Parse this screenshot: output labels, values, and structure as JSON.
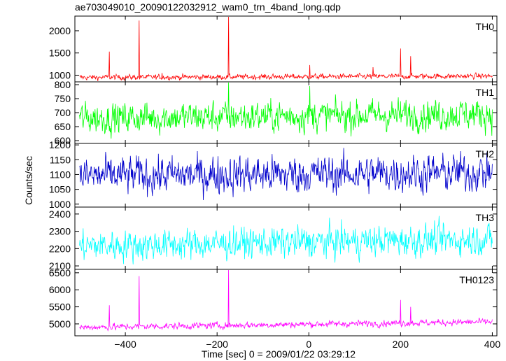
{
  "title": "ae703049010_20090122032912_wam0_trn_4band_long.qdp",
  "xlabel": "Time [sec] 0 = 2009/01/22 03:29:12",
  "ylabel": "Counts/sec",
  "chart_data": {
    "type": "line",
    "x_range": [
      -510,
      410
    ],
    "x_ticks": [
      -400,
      -200,
      0,
      200,
      400
    ],
    "x_tick_labels": [
      "−400",
      "−200",
      "0",
      "200",
      "400"
    ],
    "panels": [
      {
        "name": "TH0",
        "color": "#ff0000",
        "ylim": [
          850,
          2330
        ],
        "y_ticks": [
          1000,
          1500,
          2000
        ],
        "y_tick_labels": [
          "1000",
          "1500",
          "2000"
        ],
        "x_start": -500,
        "x_end": 400,
        "baseline": 950,
        "trend": 30,
        "noise": 28,
        "spikes": [
          [
            -435,
            1530
          ],
          [
            -370,
            2230
          ],
          [
            -175,
            2330
          ],
          [
            2,
            1230
          ],
          [
            200,
            1600
          ],
          [
            222,
            1430
          ],
          [
            140,
            1180
          ],
          [
            -320,
            1050
          ]
        ]
      },
      {
        "name": "TH1",
        "color": "#00ff00",
        "ylim": [
          590,
          810
        ],
        "y_ticks": [
          600,
          650,
          700,
          750,
          800
        ],
        "y_tick_labels": [
          "600",
          "650",
          "700",
          "750",
          "800"
        ],
        "x_start": -500,
        "x_end": 400,
        "baseline": 680,
        "trend": 15,
        "noise": 26,
        "spikes": [
          [
            -175,
            815
          ],
          [
            2,
            795
          ]
        ]
      },
      {
        "name": "TH2",
        "color": "#0000cc",
        "ylim": [
          990,
          1205
        ],
        "y_ticks": [
          1000,
          1050,
          1100,
          1150,
          1200
        ],
        "y_tick_labels": [
          "1000",
          "1050",
          "1100",
          "1150",
          "1200"
        ],
        "x_start": -500,
        "x_end": 400,
        "baseline": 1095,
        "trend": 12,
        "noise": 30,
        "spikes": []
      },
      {
        "name": "TH3",
        "color": "#00ffff",
        "ylim": [
          2080,
          2440
        ],
        "y_ticks": [
          2100,
          2200,
          2300,
          2400
        ],
        "y_tick_labels": [
          "2100",
          "2200",
          "2300",
          "2400"
        ],
        "x_start": -500,
        "x_end": 400,
        "baseline": 2215,
        "trend": 40,
        "noise": 42,
        "spikes": []
      },
      {
        "name": "TH0123",
        "color": "#ff00ff",
        "ylim": [
          4650,
          6600
        ],
        "y_ticks": [
          5000,
          5500,
          6000,
          6500
        ],
        "y_tick_labels": [
          "5000",
          "5500",
          "6000",
          "6500"
        ],
        "x_start": -500,
        "x_end": 400,
        "baseline": 4900,
        "trend": 160,
        "noise": 45,
        "spikes": [
          [
            -435,
            5550
          ],
          [
            -370,
            6400
          ],
          [
            -175,
            6600
          ],
          [
            200,
            5700
          ],
          [
            222,
            5500
          ]
        ]
      }
    ]
  }
}
